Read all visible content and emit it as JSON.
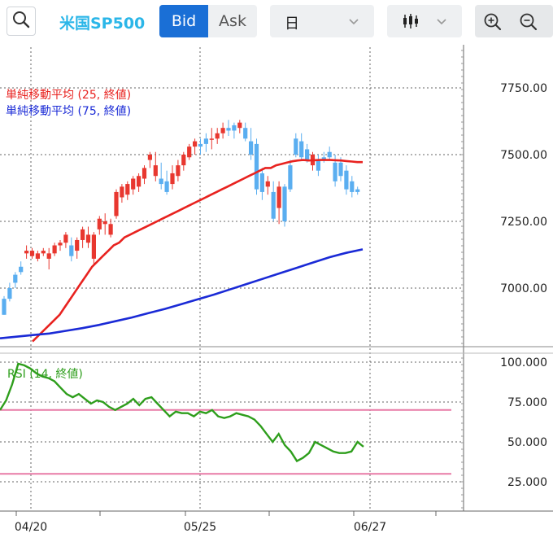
{
  "toolbar": {
    "symbol": "米国SP500",
    "bid_label": "Bid",
    "ask_label": "Ask",
    "period_value": "日",
    "search_icon": "search-icon",
    "chart_type_icon": "candlestick-icon",
    "zoom_in_icon": "zoom-in-icon",
    "zoom_out_icon": "zoom-out-icon"
  },
  "colors": {
    "up": "#e8372f",
    "down": "#5aaef0",
    "sma25": "#e8221f",
    "sma75": "#1a2ad6",
    "rsi": "#2e9e1c",
    "rsi_band": "#e87aa6",
    "accent": "#1a6fd6"
  },
  "chart_data": [
    {
      "type": "candlestick",
      "legend": [
        "単純移動平均 (25, 終値)",
        "単純移動平均 (75, 終値)"
      ],
      "ylim": [
        6800,
        7950
      ],
      "yticks": [
        "7750.00",
        "7500.00",
        "7250.00",
        "7000.00"
      ],
      "ytick_values": [
        7750,
        7500,
        7250,
        7000
      ],
      "xticks": [
        "04/20",
        "05/25",
        "06/27"
      ],
      "grid": true,
      "candles": [
        [
          6960,
          6970,
          6900,
          6900
        ],
        [
          7000,
          7020,
          6950,
          6960
        ],
        [
          7050,
          7060,
          7000,
          7020
        ],
        [
          7080,
          7100,
          7050,
          7060
        ],
        [
          7130,
          7160,
          7110,
          7140
        ],
        [
          7120,
          7150,
          7110,
          7140
        ],
        [
          7110,
          7140,
          7100,
          7130
        ],
        [
          7130,
          7150,
          7120,
          7140
        ],
        [
          7110,
          7150,
          7070,
          7130
        ],
        [
          7130,
          7170,
          7120,
          7160
        ],
        [
          7160,
          7180,
          7140,
          7170
        ],
        [
          7170,
          7210,
          7150,
          7200
        ],
        [
          7160,
          7190,
          7100,
          7120
        ],
        [
          7140,
          7190,
          7110,
          7180
        ],
        [
          7180,
          7230,
          7150,
          7220
        ],
        [
          7170,
          7230,
          7150,
          7200
        ],
        [
          7110,
          7210,
          7090,
          7200
        ],
        [
          7220,
          7270,
          7200,
          7260
        ],
        [
          7240,
          7280,
          7200,
          7250
        ],
        [
          7200,
          7260,
          7190,
          7240
        ],
        [
          7270,
          7370,
          7260,
          7360
        ],
        [
          7340,
          7390,
          7320,
          7380
        ],
        [
          7350,
          7400,
          7330,
          7390
        ],
        [
          7370,
          7420,
          7350,
          7410
        ],
        [
          7380,
          7430,
          7360,
          7420
        ],
        [
          7410,
          7460,
          7390,
          7450
        ],
        [
          7480,
          7510,
          7450,
          7500
        ],
        [
          7420,
          7510,
          7400,
          7460
        ],
        [
          7410,
          7470,
          7370,
          7390
        ],
        [
          7400,
          7440,
          7350,
          7360
        ],
        [
          7390,
          7460,
          7370,
          7430
        ],
        [
          7420,
          7480,
          7400,
          7460
        ],
        [
          7460,
          7510,
          7440,
          7500
        ],
        [
          7490,
          7540,
          7480,
          7530
        ],
        [
          7530,
          7560,
          7500,
          7550
        ],
        [
          7540,
          7560,
          7500,
          7530
        ],
        [
          7560,
          7580,
          7510,
          7540
        ],
        [
          7560,
          7600,
          7520,
          7560
        ],
        [
          7560,
          7600,
          7540,
          7580
        ],
        [
          7580,
          7620,
          7560,
          7600
        ],
        [
          7600,
          7630,
          7570,
          7590
        ],
        [
          7610,
          7620,
          7560,
          7590
        ],
        [
          7600,
          7630,
          7580,
          7620
        ],
        [
          7600,
          7620,
          7550,
          7560
        ],
        [
          7550,
          7600,
          7480,
          7500
        ],
        [
          7540,
          7560,
          7350,
          7370
        ],
        [
          7430,
          7450,
          7330,
          7360
        ],
        [
          7380,
          7420,
          7350,
          7400
        ],
        [
          7360,
          7400,
          7250,
          7260
        ],
        [
          7300,
          7400,
          7240,
          7380
        ],
        [
          7380,
          7390,
          7230,
          7250
        ],
        [
          7460,
          7480,
          7360,
          7370
        ],
        [
          7560,
          7580,
          7490,
          7500
        ],
        [
          7550,
          7580,
          7480,
          7490
        ],
        [
          7520,
          7540,
          7470,
          7480
        ],
        [
          7460,
          7510,
          7440,
          7500
        ],
        [
          7480,
          7500,
          7420,
          7440
        ],
        [
          7490,
          7510,
          7470,
          7480
        ],
        [
          7510,
          7530,
          7480,
          7490
        ],
        [
          7470,
          7500,
          7380,
          7400
        ],
        [
          7470,
          7490,
          7400,
          7420
        ],
        [
          7440,
          7460,
          7350,
          7370
        ],
        [
          7400,
          7420,
          7340,
          7360
        ],
        [
          7370,
          7380,
          7350,
          7360
        ]
      ],
      "sma25": [
        [
          6800,
          6820
        ],
        [
          6840,
          6860
        ],
        [
          6880,
          6900
        ],
        [
          6930,
          6960
        ],
        [
          6990,
          7020
        ],
        [
          7050,
          7080
        ],
        [
          7100,
          7120
        ],
        [
          7140,
          7160
        ],
        [
          7170,
          7190
        ],
        [
          7200,
          7210
        ],
        [
          7220,
          7230
        ],
        [
          7240,
          7250
        ],
        [
          7260,
          7270
        ],
        [
          7280,
          7290
        ],
        [
          7300,
          7310
        ],
        [
          7320,
          7330
        ],
        [
          7340,
          7350
        ],
        [
          7360,
          7370
        ],
        [
          7380,
          7390
        ],
        [
          7400,
          7410
        ],
        [
          7420,
          7430
        ],
        [
          7440,
          7450
        ],
        [
          7450,
          7460
        ],
        [
          7465,
          7470
        ],
        [
          7475,
          7478
        ],
        [
          7480,
          7478
        ],
        [
          7479,
          7480
        ],
        [
          7480,
          7480
        ],
        [
          7479,
          7478
        ],
        [
          7476,
          7474
        ],
        [
          7472,
          7472
        ]
      ],
      "sma75": [
        6812,
        6818,
        6824,
        6830,
        6840,
        6850,
        6862,
        6876,
        6890,
        6906,
        6922,
        6940,
        6958,
        6976,
        6996,
        7016,
        7036,
        7056,
        7076,
        7096,
        7116,
        7132,
        7145
      ]
    },
    {
      "type": "line",
      "legend": "RSI (14, 終値)",
      "ylim": [
        10,
        100
      ],
      "yticks": [
        "100.000",
        "75.000",
        "50.000",
        "25.000"
      ],
      "ytick_values": [
        100,
        75,
        50,
        25
      ],
      "bands": [
        70,
        30
      ],
      "values": [
        70,
        76,
        86,
        99,
        98,
        96,
        93,
        91,
        90,
        88,
        84,
        80,
        78,
        80,
        77,
        74,
        76,
        75,
        72,
        70,
        72,
        74,
        77,
        73,
        77,
        78,
        74,
        70,
        66,
        69,
        68,
        68,
        66,
        69,
        68,
        70,
        66,
        65,
        66,
        68,
        67,
        66,
        64,
        60,
        55,
        50,
        55,
        48,
        44,
        38,
        40,
        43,
        50,
        48,
        46,
        44,
        43,
        43,
        44,
        50,
        47
      ]
    }
  ]
}
